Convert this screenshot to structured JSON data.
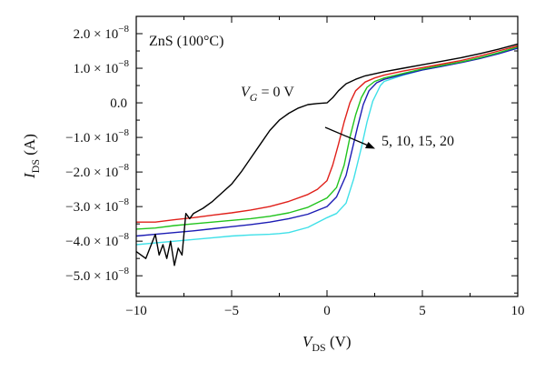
{
  "chart_data": {
    "type": "line",
    "title": "",
    "xlabel": {
      "main": "V",
      "sub": "DS",
      "unit": " (V)"
    },
    "ylabel": {
      "main": "I",
      "sub": "DS",
      "unit": " (A)"
    },
    "xlim": [
      -10,
      10
    ],
    "ylim": [
      -5.6e-08,
      2.5e-08
    ],
    "x_ticks": [
      {
        "value": -10,
        "label": "−10"
      },
      {
        "value": -5,
        "label": "−5"
      },
      {
        "value": 0,
        "label": "0"
      },
      {
        "value": 5,
        "label": "5"
      },
      {
        "value": 10,
        "label": "10"
      }
    ],
    "y_ticks": [
      {
        "value": 2e-08,
        "label": "2.0 × 10",
        "exp": "−8"
      },
      {
        "value": 1e-08,
        "label": "1.0 × 10",
        "exp": "−8"
      },
      {
        "value": 0,
        "label": "0.0",
        "exp": ""
      },
      {
        "value": -1e-08,
        "label": "−1.0 × 10",
        "exp": "−8"
      },
      {
        "value": -2e-08,
        "label": "−2.0 × 10",
        "exp": "−8"
      },
      {
        "value": -3e-08,
        "label": "−3.0 × 10",
        "exp": "−8"
      },
      {
        "value": -4e-08,
        "label": "−4.0 × 10",
        "exp": "−8"
      },
      {
        "value": -5e-08,
        "label": "−5.0 × 10",
        "exp": "−8"
      }
    ],
    "annotations": {
      "material": "ZnS (100°C)",
      "vg_main": "V",
      "vg_sub": "G",
      "vg_value": " = 0 V",
      "gate_values": "5, 10, 15, 20"
    },
    "grid": false,
    "legend": "none",
    "series": [
      {
        "color": "#000000",
        "x": [
          -10,
          -9.5,
          -9,
          -8.8,
          -8.6,
          -8.4,
          -8.2,
          -8.0,
          -7.8,
          -7.6,
          -7.4,
          -7.2,
          -7.0,
          -6.5,
          -6.0,
          -5.5,
          -5.0,
          -4.5,
          -4.0,
          -3.5,
          -3.0,
          -2.5,
          -2.0,
          -1.5,
          -1.0,
          -0.5,
          0,
          0.3,
          0.6,
          1.0,
          1.5,
          2.0,
          3.0,
          4.0,
          5.0,
          6.0,
          7.0,
          8.0,
          9.0,
          10.0
        ],
        "y": [
          -4.3e-08,
          -4.5e-08,
          -3.8e-08,
          -4.4e-08,
          -4.1e-08,
          -4.5e-08,
          -4e-08,
          -4.7e-08,
          -4.2e-08,
          -4.4e-08,
          -3.2e-08,
          -3.35e-08,
          -3.2e-08,
          -3.05e-08,
          -2.85e-08,
          -2.6e-08,
          -2.35e-08,
          -2e-08,
          -1.6e-08,
          -1.2e-08,
          -8e-09,
          -5e-09,
          -3e-09,
          -1.5e-09,
          -5e-10,
          -2e-10,
          0.0,
          1.5e-09,
          3.5e-09,
          5.5e-09,
          6.8e-09,
          7.8e-09,
          9e-09,
          1e-08,
          1.1e-08,
          1.2e-08,
          1.3e-08,
          1.42e-08,
          1.55e-08,
          1.7e-08
        ]
      },
      {
        "color": "#e0201a",
        "x": [
          -10,
          -9,
          -8,
          -7,
          -6,
          -5,
          -4,
          -3,
          -2,
          -1,
          -0.5,
          0,
          0.3,
          0.6,
          0.9,
          1.2,
          1.5,
          2.0,
          2.5,
          3.0,
          4.0,
          5.0,
          6.0,
          7.0,
          8.0,
          9.0,
          10.0
        ],
        "y": [
          -3.45e-08,
          -3.45e-08,
          -3.38e-08,
          -3.32e-08,
          -3.25e-08,
          -3.18e-08,
          -3.1e-08,
          -3e-08,
          -2.85e-08,
          -2.65e-08,
          -2.5e-08,
          -2.25e-08,
          -1.8e-08,
          -1.2e-08,
          -5.5e-09,
          0.0,
          3.5e-09,
          6e-09,
          7.2e-09,
          8e-09,
          9.2e-09,
          1.02e-08,
          1.12e-08,
          1.22e-08,
          1.35e-08,
          1.5e-08,
          1.65e-08
        ]
      },
      {
        "color": "#22c41e",
        "x": [
          -10,
          -9,
          -8,
          -7,
          -6,
          -5,
          -4,
          -3,
          -2,
          -1,
          0,
          0.5,
          0.9,
          1.2,
          1.5,
          1.8,
          2.1,
          2.5,
          3.0,
          4.0,
          5.0,
          6.0,
          7.0,
          8.0,
          9.0,
          10.0
        ],
        "y": [
          -3.65e-08,
          -3.62e-08,
          -3.55e-08,
          -3.5e-08,
          -3.45e-08,
          -3.4e-08,
          -3.35e-08,
          -3.28e-08,
          -3.18e-08,
          -3.02e-08,
          -2.75e-08,
          -2.45e-08,
          -1.8e-08,
          -1e-08,
          -3.5e-09,
          1.5e-09,
          4.5e-09,
          6.2e-09,
          7.2e-09,
          8.5e-09,
          9.8e-09,
          1.08e-08,
          1.18e-08,
          1.3e-08,
          1.45e-08,
          1.62e-08
        ]
      },
      {
        "color": "#1c1cb4",
        "x": [
          -10,
          -9,
          -8,
          -7,
          -6,
          -5,
          -4,
          -3,
          -2,
          -1,
          0,
          0.5,
          1.0,
          1.3,
          1.6,
          1.9,
          2.2,
          2.6,
          3.0,
          4.0,
          5.0,
          6.0,
          7.0,
          8.0,
          9.0,
          10.0
        ],
        "y": [
          -3.85e-08,
          -3.8e-08,
          -3.75e-08,
          -3.7e-08,
          -3.64e-08,
          -3.58e-08,
          -3.52e-08,
          -3.45e-08,
          -3.35e-08,
          -3.22e-08,
          -3e-08,
          -2.72e-08,
          -2.1e-08,
          -1.4e-08,
          -7e-09,
          -5e-10,
          3.5e-09,
          5.8e-09,
          6.8e-09,
          8.2e-09,
          9.5e-09,
          1.05e-08,
          1.16e-08,
          1.28e-08,
          1.42e-08,
          1.58e-08
        ]
      },
      {
        "color": "#3fe0e8",
        "x": [
          -10,
          -9,
          -8,
          -7,
          -6,
          -5,
          -4,
          -3,
          -2.5,
          -2,
          -1,
          0,
          0.5,
          1.0,
          1.4,
          1.8,
          2.1,
          2.4,
          2.8,
          3.0,
          4.0,
          5.0,
          6.0,
          7.0,
          8.0,
          9.0,
          10.0
        ],
        "y": [
          -4.1e-08,
          -4.05e-08,
          -4e-08,
          -3.95e-08,
          -3.9e-08,
          -3.85e-08,
          -3.82e-08,
          -3.8e-08,
          -3.78e-08,
          -3.75e-08,
          -3.6e-08,
          -3.32e-08,
          -3.2e-08,
          -2.9e-08,
          -2.2e-08,
          -1.3e-08,
          -5.5e-09,
          5e-10,
          5e-09,
          6.2e-09,
          8e-09,
          9.5e-09,
          1.05e-08,
          1.17e-08,
          1.3e-08,
          1.45e-08,
          1.6e-08
        ]
      }
    ]
  }
}
